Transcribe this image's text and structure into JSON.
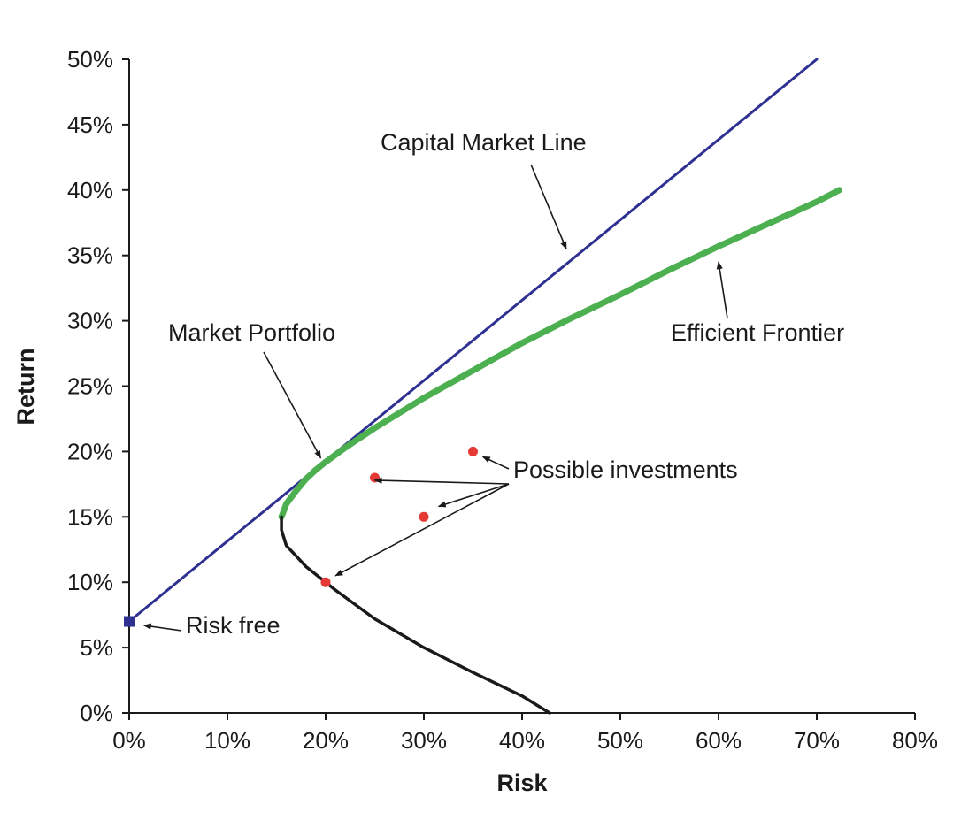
{
  "chart_data": {
    "type": "line",
    "title": "",
    "xlabel": "Risk",
    "ylabel": "Return",
    "xlim": [
      0,
      80
    ],
    "ylim": [
      0,
      50
    ],
    "x_ticks": [
      "0%",
      "10%",
      "20%",
      "30%",
      "40%",
      "50%",
      "60%",
      "70%",
      "80%"
    ],
    "y_ticks": [
      "0%",
      "5%",
      "10%",
      "15%",
      "20%",
      "25%",
      "30%",
      "35%",
      "40%",
      "45%",
      "50%"
    ],
    "grid": false,
    "series": [
      {
        "name": "Capital Market Line",
        "color": "#2e3192",
        "points": [
          [
            0,
            7
          ],
          [
            70,
            50
          ]
        ]
      },
      {
        "name": "Efficient Frontier",
        "color": "#4caf50",
        "points": [
          [
            15.5,
            15
          ],
          [
            16,
            16
          ],
          [
            17,
            17
          ],
          [
            18,
            17.9
          ],
          [
            19,
            18.6
          ],
          [
            20,
            19.2
          ],
          [
            22,
            20.3
          ],
          [
            25,
            21.8
          ],
          [
            30,
            24.1
          ],
          [
            35,
            26.2
          ],
          [
            40,
            28.3
          ],
          [
            45,
            30.2
          ],
          [
            50,
            32.0
          ],
          [
            55,
            33.9
          ],
          [
            60,
            35.7
          ],
          [
            65,
            37.4
          ],
          [
            70,
            39.1
          ],
          [
            72.3,
            40
          ]
        ]
      },
      {
        "color": "#1a1a1a",
        "points": [
          [
            15.5,
            15
          ],
          [
            15.5,
            14
          ],
          [
            16,
            12.8
          ],
          [
            17,
            12
          ],
          [
            18,
            11.2
          ],
          [
            19.5,
            10.3
          ],
          [
            21,
            9.4
          ],
          [
            25,
            7.2
          ],
          [
            30,
            5.0
          ],
          [
            35,
            3.1
          ],
          [
            40,
            1.3
          ],
          [
            42.8,
            0
          ]
        ]
      }
    ],
    "points": [
      {
        "x": 25,
        "y": 18,
        "color": "#e53935"
      },
      {
        "x": 35,
        "y": 20,
        "color": "#e53935"
      },
      {
        "x": 30,
        "y": 15,
        "color": "#e53935"
      },
      {
        "x": 20,
        "y": 10,
        "color": "#e53935"
      }
    ],
    "risk_free_point": {
      "x": 0,
      "y": 7,
      "color": "#2e3192"
    },
    "annotations": [
      {
        "text": "Capital Market Line",
        "points_to": [
          44.5,
          35.5
        ]
      },
      {
        "text": "Market Portfolio",
        "points_to": [
          19.5,
          19.5
        ]
      },
      {
        "text": "Efficient Frontier",
        "points_to": [
          60,
          34.5
        ]
      },
      {
        "text": "Possible investments",
        "points_to": [
          [
            25,
            17.8
          ],
          [
            31.5,
            15.8
          ],
          [
            21,
            10.5
          ],
          [
            36,
            19.6
          ]
        ]
      },
      {
        "text": "Risk free",
        "points_to": [
          1.5,
          6.7
        ]
      }
    ]
  }
}
